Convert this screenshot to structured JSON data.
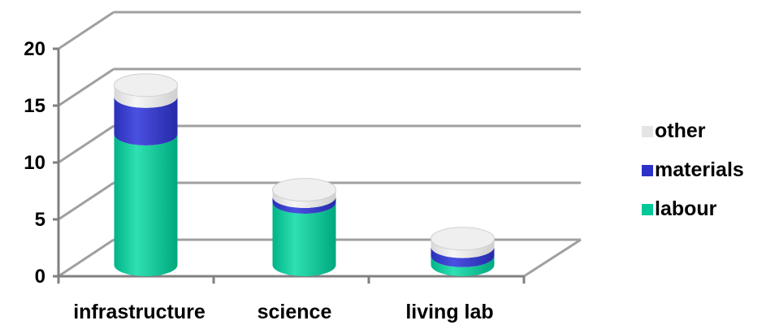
{
  "chart_data": {
    "type": "bar",
    "stacked": true,
    "style": "3d-cylinder",
    "categories": [
      "infrastructure",
      "science",
      "living lab"
    ],
    "series": [
      {
        "name": "labour",
        "values": [
          11.5,
          5.5,
          0.8
        ],
        "color": "#00C896"
      },
      {
        "name": "materials",
        "values": [
          3.3,
          0.5,
          0.8
        ],
        "color": "#2C32C8"
      },
      {
        "name": "other",
        "values": [
          1.0,
          0.6,
          0.7
        ],
        "color": "#E4E4E4"
      }
    ],
    "yticks": [
      0,
      5,
      10,
      15,
      20
    ],
    "ylim": [
      0,
      20
    ],
    "grid": true,
    "legend_position": "right",
    "title": "",
    "xlabel": "",
    "ylabel": ""
  }
}
